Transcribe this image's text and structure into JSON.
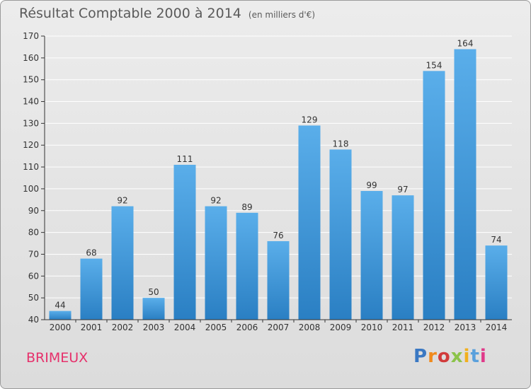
{
  "header": {
    "title": "Résultat Comptable 2000 à 2014",
    "subtitle": "(en milliers d'€)"
  },
  "footer": {
    "commune": "BRIMEUX",
    "logo": {
      "letters": [
        "P",
        "r",
        "o",
        "x",
        "i",
        "t",
        "i"
      ],
      "colors": [
        "#3a78c3",
        "#f08a1c",
        "#d13b3b",
        "#8bc34a",
        "#f2b01e",
        "#5aa0dc",
        "#e03a8a"
      ]
    }
  },
  "chart_data": {
    "type": "bar",
    "categories": [
      "2000",
      "2001",
      "2002",
      "2003",
      "2004",
      "2005",
      "2006",
      "2007",
      "2008",
      "2009",
      "2010",
      "2011",
      "2012",
      "2013",
      "2014"
    ],
    "values": [
      44,
      68,
      92,
      50,
      111,
      92,
      89,
      76,
      129,
      118,
      99,
      97,
      154,
      164,
      74
    ],
    "ylim": [
      40,
      170
    ],
    "yticks": [
      40,
      50,
      60,
      70,
      80,
      90,
      100,
      110,
      120,
      130,
      140,
      150,
      160,
      170
    ],
    "grid": true,
    "colors": {
      "bar_top": "#5aaeea",
      "bar_bottom": "#2a7fc3",
      "grid": "#ffffff",
      "axis": "#333333",
      "text": "#333333"
    }
  }
}
